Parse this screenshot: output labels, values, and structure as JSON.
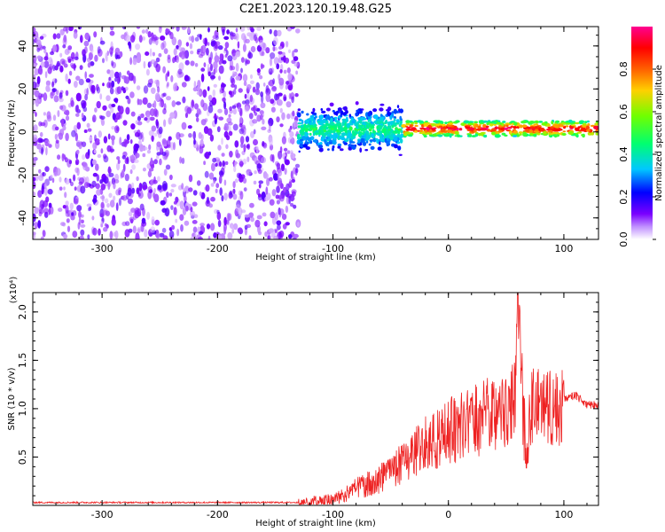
{
  "title": "C2E1.2023.120.19.48.G25",
  "colors": {
    "spectrogram": "#7a00ff",
    "snr_line": "#ee2222",
    "colormap": [
      "#ffffff",
      "#7a00ff",
      "#0000ff",
      "#00c8ff",
      "#00ff70",
      "#70ff00",
      "#ffd000",
      "#ff6000",
      "#ff0000",
      "#ff0090"
    ]
  },
  "chart_data": [
    {
      "type": "heatmap",
      "xlabel": "Height of straight line (km)",
      "ylabel": "Frequency (Hz)",
      "xlim": [
        -360,
        130
      ],
      "ylim": [
        -50,
        49
      ],
      "xticks": [
        "-300",
        "-200",
        "-100",
        "0",
        "100"
      ],
      "xtick_values": [
        -300,
        -200,
        -100,
        0,
        100
      ],
      "yticks": [
        "-40",
        "-20",
        "0",
        "20",
        "40"
      ],
      "ytick_values": [
        -40,
        -20,
        0,
        20,
        40
      ],
      "colorbar": {
        "label": "Normalized spectral amplitude",
        "range": [
          0,
          1
        ],
        "ticks": [
          "0.0",
          "0.2",
          "0.4",
          "0.6",
          "0.8"
        ],
        "tick_values": [
          0,
          0.2,
          0.4,
          0.6,
          0.8
        ]
      },
      "regions": [
        {
          "x_range": [
            -360,
            -130
          ],
          "freq_range": [
            -50,
            49
          ],
          "amplitude": [
            0.0,
            0.15
          ]
        },
        {
          "x_range": [
            -130,
            -40
          ],
          "freq_range": [
            -12,
            15
          ],
          "amplitude": [
            0.1,
            0.45
          ]
        },
        {
          "x_range": [
            -40,
            130
          ],
          "freq_range": [
            -2,
            5
          ],
          "amplitude": [
            0.4,
            0.95
          ]
        }
      ]
    },
    {
      "type": "line",
      "xlabel": "Height of straight line (km)",
      "ylabel": "SNR (10 * v/v)",
      "scale_label": "(x10⁴)",
      "xlim": [
        -360,
        130
      ],
      "ylim": [
        0,
        2.2
      ],
      "xticks": [
        "-300",
        "-200",
        "-100",
        "0",
        "100"
      ],
      "xtick_values": [
        -300,
        -200,
        -100,
        0,
        100
      ],
      "yticks": [
        "0.5",
        "1.0",
        "1.5",
        "2.0"
      ],
      "ytick_values": [
        0.5,
        1.0,
        1.5,
        2.0
      ],
      "series": [
        {
          "x": [
            -360,
            -300,
            -200,
            -130,
            -120,
            -100,
            -90,
            -80,
            -70,
            -60,
            -50,
            -40,
            -30,
            -20,
            -10,
            0,
            10,
            20,
            30,
            40,
            50,
            58,
            60,
            65,
            68,
            70,
            75,
            80,
            90,
            100,
            110,
            120,
            130
          ],
          "y": [
            0.03,
            0.03,
            0.03,
            0.03,
            0.05,
            0.08,
            0.12,
            0.2,
            0.25,
            0.3,
            0.4,
            0.5,
            0.6,
            0.7,
            0.75,
            0.85,
            0.9,
            0.95,
            1.0,
            1.05,
            1.1,
            1.2,
            2.2,
            1.0,
            0.55,
            1.1,
            1.15,
            1.15,
            1.1,
            1.1,
            1.15,
            1.05,
            1.05
          ]
        }
      ]
    }
  ]
}
